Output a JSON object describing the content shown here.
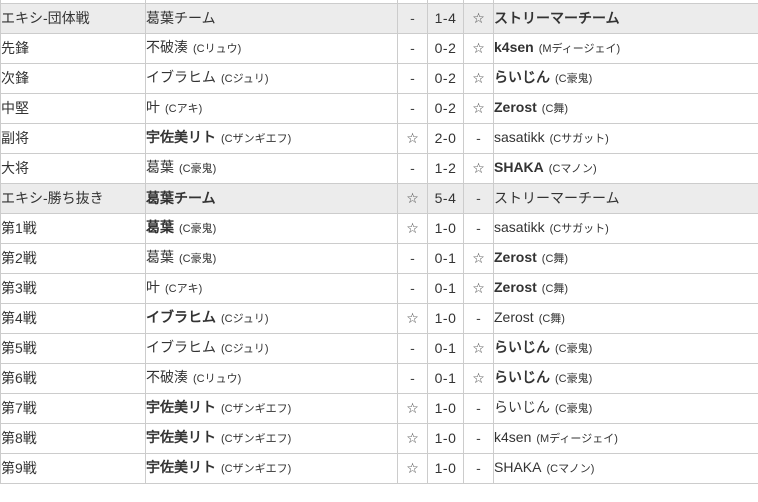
{
  "table": {
    "description": "Exhibition match results table (team battle and gauntlet) between Kuzuha Team and Streamer Team",
    "border_color": "#cccccc",
    "section_row_bg": "#ececec",
    "text_color": "#333333",
    "win_mark": "☆",
    "loss_mark": "-",
    "rows": [
      {
        "type": "section",
        "round": "エキシ-団体戦",
        "left": {
          "name": "葛葉チーム",
          "char": "",
          "bold": false,
          "mark": "-"
        },
        "score": "1-4",
        "right": {
          "name": "ストリーマーチーム",
          "char": "",
          "bold": true,
          "mark": "☆"
        }
      },
      {
        "type": "match",
        "round": "先鋒",
        "left": {
          "name": "不破湊",
          "char": "(Cリュウ)",
          "bold": false,
          "mark": "-"
        },
        "score": "0-2",
        "right": {
          "name": "k4sen",
          "char": "(Mディージェイ)",
          "bold": true,
          "mark": "☆"
        }
      },
      {
        "type": "match",
        "round": "次鋒",
        "left": {
          "name": "イブラヒム",
          "char": "(Cジュリ)",
          "bold": false,
          "mark": "-"
        },
        "score": "0-2",
        "right": {
          "name": "らいじん",
          "char": "(C豪鬼)",
          "bold": true,
          "mark": "☆"
        }
      },
      {
        "type": "match",
        "round": "中堅",
        "left": {
          "name": "叶",
          "char": "(Cアキ)",
          "bold": false,
          "mark": "-"
        },
        "score": "0-2",
        "right": {
          "name": "Zerost",
          "char": "(C舞)",
          "bold": true,
          "mark": "☆"
        }
      },
      {
        "type": "match",
        "round": "副将",
        "left": {
          "name": "宇佐美リト",
          "char": "(Cザンギエフ)",
          "bold": true,
          "mark": "☆"
        },
        "score": "2-0",
        "right": {
          "name": "sasatikk",
          "char": "(Cサガット)",
          "bold": false,
          "mark": "-"
        }
      },
      {
        "type": "match",
        "round": "大将",
        "left": {
          "name": "葛葉",
          "char": "(C豪鬼)",
          "bold": false,
          "mark": "-"
        },
        "score": "1-2",
        "right": {
          "name": "SHAKA",
          "char": "(Cマノン)",
          "bold": true,
          "mark": "☆"
        }
      },
      {
        "type": "section",
        "round": "エキシ-勝ち抜き",
        "left": {
          "name": "葛葉チーム",
          "char": "",
          "bold": true,
          "mark": "☆"
        },
        "score": "5-4",
        "right": {
          "name": "ストリーマーチーム",
          "char": "",
          "bold": false,
          "mark": "-"
        }
      },
      {
        "type": "match",
        "round": "第1戦",
        "left": {
          "name": "葛葉",
          "char": "(C豪鬼)",
          "bold": true,
          "mark": "☆"
        },
        "score": "1-0",
        "right": {
          "name": "sasatikk",
          "char": "(Cサガット)",
          "bold": false,
          "mark": "-"
        }
      },
      {
        "type": "match",
        "round": "第2戦",
        "left": {
          "name": "葛葉",
          "char": "(C豪鬼)",
          "bold": false,
          "mark": "-"
        },
        "score": "0-1",
        "right": {
          "name": "Zerost",
          "char": "(C舞)",
          "bold": true,
          "mark": "☆"
        }
      },
      {
        "type": "match",
        "round": "第3戦",
        "left": {
          "name": "叶",
          "char": "(Cアキ)",
          "bold": false,
          "mark": "-"
        },
        "score": "0-1",
        "right": {
          "name": "Zerost",
          "char": "(C舞)",
          "bold": true,
          "mark": "☆"
        }
      },
      {
        "type": "match",
        "round": "第4戦",
        "left": {
          "name": "イブラヒム",
          "char": "(Cジュリ)",
          "bold": true,
          "mark": "☆"
        },
        "score": "1-0",
        "right": {
          "name": "Zerost",
          "char": "(C舞)",
          "bold": false,
          "mark": "-"
        }
      },
      {
        "type": "match",
        "round": "第5戦",
        "left": {
          "name": "イブラヒム",
          "char": "(Cジュリ)",
          "bold": false,
          "mark": "-"
        },
        "score": "0-1",
        "right": {
          "name": "らいじん",
          "char": "(C豪鬼)",
          "bold": true,
          "mark": "☆"
        }
      },
      {
        "type": "match",
        "round": "第6戦",
        "left": {
          "name": "不破湊",
          "char": "(Cリュウ)",
          "bold": false,
          "mark": "-"
        },
        "score": "0-1",
        "right": {
          "name": "らいじん",
          "char": "(C豪鬼)",
          "bold": true,
          "mark": "☆"
        }
      },
      {
        "type": "match",
        "round": "第7戦",
        "left": {
          "name": "宇佐美リト",
          "char": "(Cザンギエフ)",
          "bold": true,
          "mark": "☆"
        },
        "score": "1-0",
        "right": {
          "name": "らいじん",
          "char": "(C豪鬼)",
          "bold": false,
          "mark": "-"
        }
      },
      {
        "type": "match",
        "round": "第8戦",
        "left": {
          "name": "宇佐美リト",
          "char": "(Cザンギエフ)",
          "bold": true,
          "mark": "☆"
        },
        "score": "1-0",
        "right": {
          "name": "k4sen",
          "char": "(Mディージェイ)",
          "bold": false,
          "mark": "-"
        }
      },
      {
        "type": "match",
        "round": "第9戦",
        "left": {
          "name": "宇佐美リト",
          "char": "(Cザンギエフ)",
          "bold": true,
          "mark": "☆"
        },
        "score": "1-0",
        "right": {
          "name": "SHAKA",
          "char": "(Cマノン)",
          "bold": false,
          "mark": "-"
        }
      }
    ]
  }
}
